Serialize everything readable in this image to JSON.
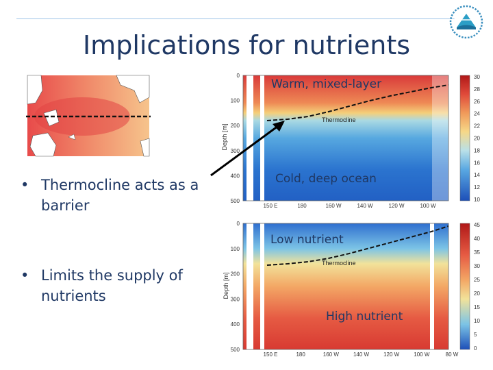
{
  "slide": {
    "title": "Implications for nutrients",
    "bullets": [
      "Thermocline acts as a barrier",
      "Limits the supply of nutrients"
    ]
  },
  "labels": {
    "warm": "Warm, mixed-layer",
    "cold": "Cold, deep ocean",
    "low": "Low nutrient",
    "high": "High nutrient",
    "thermocline": "Thermocline",
    "depth_axis": "Depth [m]"
  },
  "temperature_panel": {
    "y_ticks": [
      "0",
      "100",
      "200",
      "300",
      "400",
      "500"
    ],
    "x_ticks": [
      "150 E",
      "180",
      "160 W",
      "140 W",
      "120 W",
      "100 W"
    ],
    "colorbar_ticks": [
      "30",
      "28",
      "26",
      "24",
      "22",
      "20",
      "18",
      "16",
      "14",
      "12",
      "10"
    ]
  },
  "nutrient_panel": {
    "y_ticks": [
      "0",
      "100",
      "200",
      "300",
      "400",
      "500"
    ],
    "x_ticks": [
      "150 E",
      "180",
      "160 W",
      "140 W",
      "120 W",
      "100 W",
      "80 W"
    ],
    "colorbar_ticks": [
      "45",
      "40",
      "35",
      "30",
      "25",
      "20",
      "15",
      "10",
      "5",
      "0"
    ]
  },
  "colors": {
    "title": "#1f3864",
    "text": "#1f3864",
    "warm": "#d73232",
    "cold": "#1f6fd1",
    "rule": "#9dc3e6"
  },
  "icons": [
    "logo-icon"
  ]
}
